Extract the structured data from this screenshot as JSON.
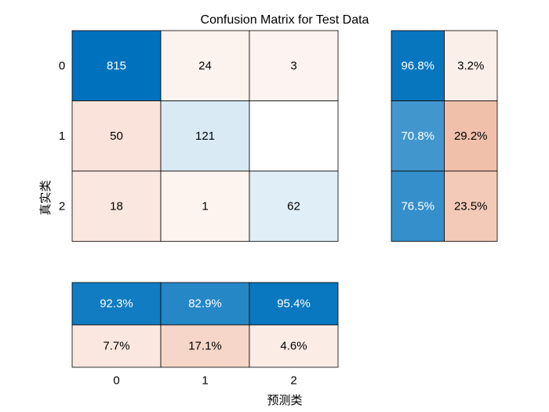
{
  "chart_data": {
    "type": "heatmap",
    "title": "Confusion Matrix for Test Data",
    "xlabel": "预测类",
    "ylabel": "真实类",
    "class_labels": [
      "0",
      "1",
      "2"
    ],
    "matrix": [
      [
        815,
        24,
        3
      ],
      [
        50,
        121,
        ""
      ],
      [
        18,
        1,
        62
      ]
    ],
    "row_summary": [
      [
        "96.8%",
        "3.2%"
      ],
      [
        "70.8%",
        "29.2%"
      ],
      [
        "76.5%",
        "23.5%"
      ]
    ],
    "column_summary": {
      "correct": [
        "92.3%",
        "82.9%",
        "95.4%"
      ],
      "incorrect": [
        "7.7%",
        "17.1%",
        "4.6%"
      ]
    },
    "grid": true,
    "colors": {
      "correct_blue": "#0072bd",
      "incorrect_red": "#d95319",
      "cell_border": "#000000",
      "dark_text": "#000000",
      "light_text": "#ffffff"
    }
  }
}
